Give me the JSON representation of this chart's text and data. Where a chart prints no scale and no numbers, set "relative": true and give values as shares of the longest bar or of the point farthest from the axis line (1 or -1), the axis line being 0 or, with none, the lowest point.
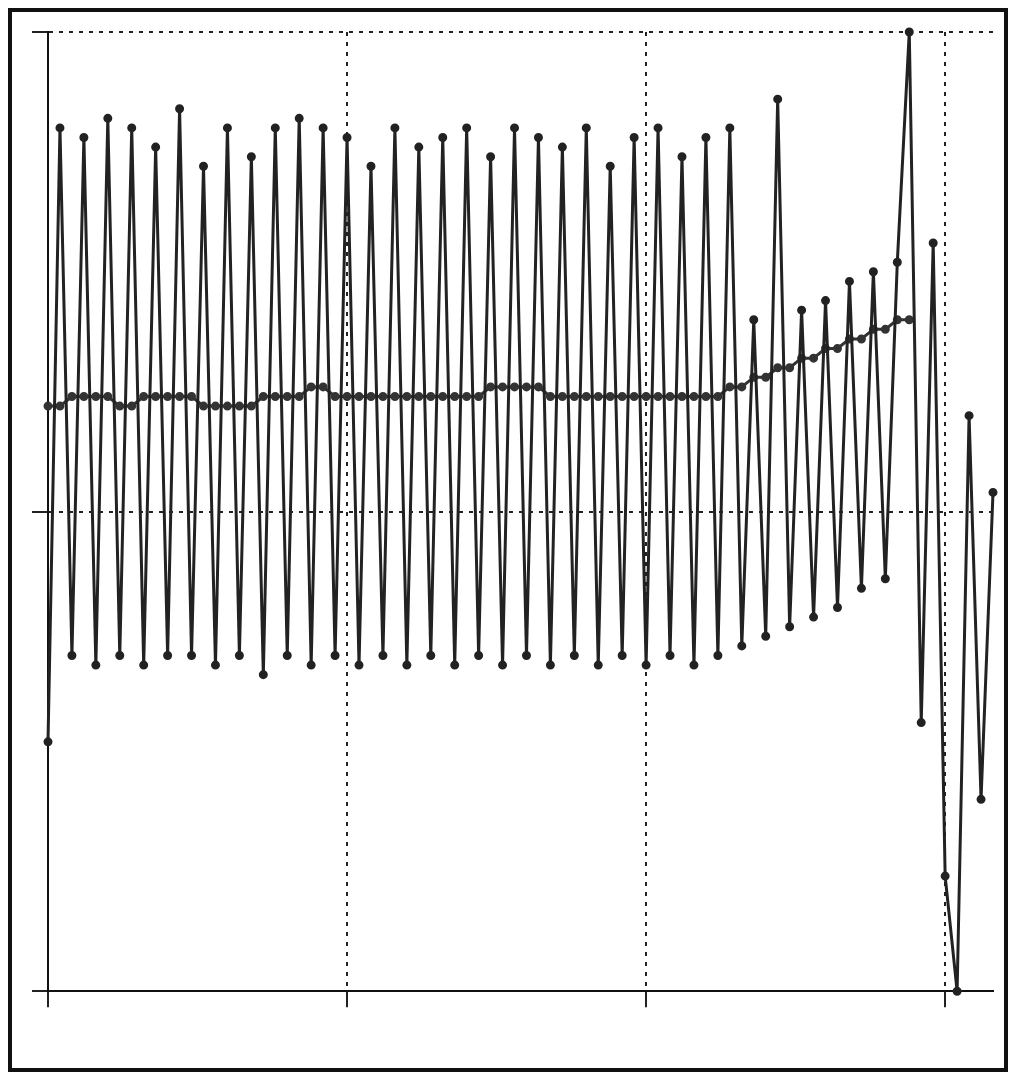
{
  "chart_data": {
    "type": "line",
    "relative": true,
    "grid": true,
    "marker": "circle",
    "line_style": "solid",
    "categories": [
      null,
      null,
      null,
      null,
      null,
      null,
      null,
      null,
      null,
      null,
      null,
      null,
      null,
      null,
      null,
      null,
      null,
      null,
      null,
      null,
      null,
      null,
      null,
      null,
      null,
      null,
      null,
      null,
      null,
      null,
      null,
      null,
      null,
      null,
      null,
      null,
      null,
      null,
      null,
      null,
      null,
      null,
      null,
      null,
      null,
      null,
      null,
      null,
      null,
      null,
      null,
      null,
      null,
      null,
      null,
      null,
      null,
      null,
      null,
      null,
      null,
      null,
      null,
      null,
      null,
      null,
      null,
      null,
      null,
      null,
      null,
      null,
      null,
      null,
      null,
      null,
      null,
      null,
      null,
      null
    ],
    "series": [
      {
        "color": "#222222",
        "values": [
          0.26,
          0.9,
          0.35,
          0.89,
          0.34,
          0.91,
          0.35,
          0.9,
          0.34,
          0.88,
          0.35,
          0.92,
          0.35,
          0.86,
          0.34,
          0.9,
          0.35,
          0.87,
          0.33,
          0.9,
          0.35,
          0.91,
          0.34,
          0.9,
          0.35,
          0.89,
          0.34,
          0.86,
          0.35,
          0.9,
          0.34,
          0.88,
          0.35,
          0.89,
          0.34,
          0.9,
          0.35,
          0.87,
          0.34,
          0.9,
          0.35,
          0.89,
          0.34,
          0.88,
          0.35,
          0.9,
          0.34,
          0.86,
          0.35,
          0.89,
          0.34,
          0.9,
          0.35,
          0.87,
          0.34,
          0.89,
          0.35,
          0.9,
          0.36,
          0.7,
          0.37,
          0.93,
          0.38,
          0.71,
          0.39,
          0.72,
          0.4,
          0.74,
          0.42,
          0.75,
          0.43,
          0.76,
          1.0,
          0.28,
          0.78,
          0.12,
          0.0,
          0.6,
          0.2,
          0.52
        ]
      },
      {
        "color": "#333333",
        "values": [
          0.61,
          0.61,
          0.62,
          0.62,
          0.62,
          0.62,
          0.61,
          0.61,
          0.62,
          0.62,
          0.62,
          0.62,
          0.62,
          0.61,
          0.61,
          0.61,
          0.61,
          0.61,
          0.62,
          0.62,
          0.62,
          0.62,
          0.63,
          0.63,
          0.62,
          0.62,
          0.62,
          0.62,
          0.62,
          0.62,
          0.62,
          0.62,
          0.62,
          0.62,
          0.62,
          0.62,
          0.62,
          0.63,
          0.63,
          0.63,
          0.63,
          0.63,
          0.62,
          0.62,
          0.62,
          0.62,
          0.62,
          0.62,
          0.62,
          0.62,
          0.62,
          0.62,
          0.62,
          0.62,
          0.62,
          0.62,
          0.62,
          0.63,
          0.63,
          0.64,
          0.64,
          0.65,
          0.65,
          0.66,
          0.66,
          0.67,
          0.67,
          0.68,
          0.68,
          0.69,
          0.69,
          0.7,
          0.7,
          null,
          null,
          null,
          null,
          null,
          null,
          null
        ]
      }
    ]
  }
}
